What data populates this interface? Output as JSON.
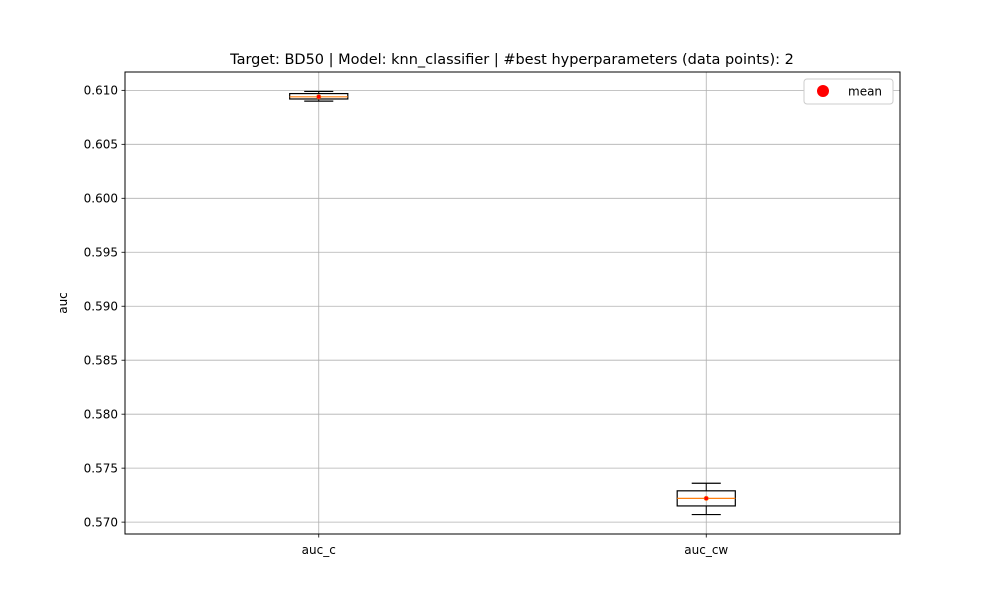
{
  "chart_data": {
    "type": "box",
    "title": "Target: BD50 | Model: knn_classifier | #best hyperparameters (data points): 2",
    "xlabel": "",
    "ylabel": "auc",
    "ylim": [
      0.5689,
      0.6117
    ],
    "yticks": [
      0.57,
      0.575,
      0.58,
      0.585,
      0.59,
      0.595,
      0.6,
      0.605,
      0.61
    ],
    "ytick_labels": [
      "0.570",
      "0.575",
      "0.580",
      "0.585",
      "0.590",
      "0.595",
      "0.600",
      "0.605",
      "0.610"
    ],
    "categories": [
      "auc_c",
      "auc_cw"
    ],
    "boxes": [
      {
        "category": "auc_c",
        "whislo": 0.609,
        "q1": 0.6092,
        "med": 0.6094,
        "q3": 0.6097,
        "whishi": 0.6099,
        "mean": 0.6094
      },
      {
        "category": "auc_cw",
        "whislo": 0.5707,
        "q1": 0.5715,
        "med": 0.5722,
        "q3": 0.5729,
        "whishi": 0.5736,
        "mean": 0.5722
      }
    ],
    "grid": true,
    "legend": {
      "position": "upper-right",
      "entries": [
        {
          "label": "mean",
          "marker": "circle",
          "color": "#ff0000"
        }
      ]
    },
    "colors": {
      "box_edge": "#000000",
      "median": "#ff7f0e",
      "mean": "#ff0000",
      "grid": "#b0b0b0"
    }
  }
}
